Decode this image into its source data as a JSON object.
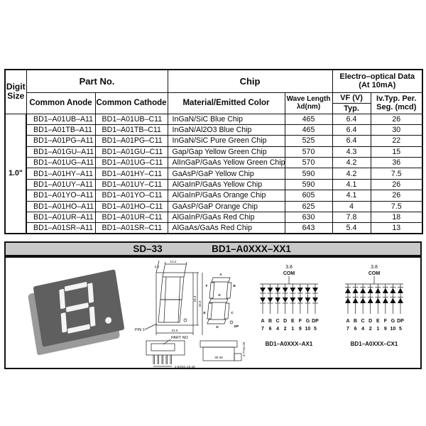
{
  "table": {
    "headers": {
      "digit_line1": "Digit",
      "digit_line2": "Size",
      "part_no": "Part No.",
      "chip": "Chip",
      "electro_line1": "Electro–optical Data",
      "electro_line2": "(At 10mA)",
      "common_anode": "Common Anode",
      "common_cathode": "Common Cathode",
      "material": "Material/Emitted Color",
      "wave_line1": "Wave Length",
      "wave_line2": "λd(nm)",
      "vf": "VF (V)",
      "typ": "Typ.",
      "iv_line1": "Iv.Typ. Per.",
      "iv_line2": "Seg. (mcd)"
    },
    "digit_size_value": "1.0\"",
    "rows": [
      {
        "anode": "BD1–A01UB–A11",
        "cathode": "BD1–A01UB–C11",
        "material": "InGaN/SiC Blue Chip",
        "wavelength": "465",
        "vf": "6.4",
        "iv": "26"
      },
      {
        "anode": "BD1–A01TB–A11",
        "cathode": "BD1–A01TB–C11",
        "material": "InGaN/Al2O3 Blue Chip",
        "wavelength": "465",
        "vf": "6.4",
        "iv": "30"
      },
      {
        "anode": "BD1–A01PG–A11",
        "cathode": "BD1–A01PG–C11",
        "material": "InGaN/SiC Pure Green Chip",
        "wavelength": "525",
        "vf": "6.4",
        "iv": "22"
      },
      {
        "anode": "BD1–A01GU–A11",
        "cathode": "BD1–A01GU–C11",
        "material": "Gap/Gap Yellow Green Chip",
        "wavelength": "570",
        "vf": "4.3",
        "iv": "15"
      },
      {
        "anode": "BD1–A01UG–A11",
        "cathode": "BD1–A01UG–C11",
        "material": "AlInGaP/GaAs Yellow Green Chip",
        "wavelength": "570",
        "vf": "4.2",
        "iv": "36"
      },
      {
        "anode": "BD1–A01HY–A11",
        "cathode": "BD1–A01HY–C11",
        "material": "GaAsP/GaP Yellow Chip",
        "wavelength": "590",
        "vf": "4.2",
        "iv": "7.5"
      },
      {
        "anode": "BD1–A01UY–A11",
        "cathode": "BD1–A01UY–C11",
        "material": "AlGaInP/GaAs Yellow Chip",
        "wavelength": "590",
        "vf": "4.1",
        "iv": "26"
      },
      {
        "anode": "BD1–A01YO–A11",
        "cathode": "BD1–A01YO–C11",
        "material": "AlGaInP/GaAs Orange Chip",
        "wavelength": "605",
        "vf": "4.1",
        "iv": "26"
      },
      {
        "anode": "BD1–A01HO–A11",
        "cathode": "BD1–A01HO–C11",
        "material": "GaAsP/GaP Orange Chip",
        "wavelength": "625",
        "vf": "4",
        "iv": "7.5"
      },
      {
        "anode": "BD1–A01UR–A11",
        "cathode": "BD1–A01UR–C11",
        "material": "AlGaInP/GaAs Red Chip",
        "wavelength": "630",
        "vf": "7.8",
        "iv": "18"
      },
      {
        "anode": "BD1–A01SR–A11",
        "cathode": "BD1–A01SR–C11",
        "material": "AlGaAs/GaAs Red Chip",
        "wavelength": "643",
        "vf": "5.4",
        "iv": "13"
      }
    ]
  },
  "footer": {
    "package": "SD–33",
    "part": "BD1–A0XXX–XX1"
  },
  "drawing": {
    "top_width": "14.2",
    "top_offset": "2.3",
    "body_height": "25.4",
    "total_height": "34.0",
    "body_width": "24.6",
    "pin1": "PIN 1",
    "part_no": "PART NO",
    "pin_pitch": "2.54X4=10.16",
    "bottom_width": "30.48",
    "side_height": "4.77±0.25",
    "segments": {
      "a": "A",
      "b": "B",
      "c": "C",
      "d": "D",
      "e": "E",
      "f": "F",
      "g": "G",
      "dp": "DP"
    }
  },
  "circuits": {
    "com_value": "3.8",
    "com_label": "COM",
    "pin_letters": [
      "A",
      "B",
      "C",
      "D",
      "E",
      "F",
      "G",
      "DP"
    ],
    "pin_numbers": [
      "7",
      "6",
      "4",
      "2",
      "1",
      "9",
      "10",
      "5"
    ],
    "anode_label": "BD1–A0XXX–AX1",
    "cathode_label": "BD1–A0XXX–CX1"
  },
  "colors": {
    "header_gray": "#9c9c9c",
    "digit_cell_gray": "#d8d8d8",
    "footer_gray": "#c9c9c9",
    "line_black": "#111111",
    "photo_body": "#5f5f5f",
    "segment_white": "#f4f4f4"
  }
}
